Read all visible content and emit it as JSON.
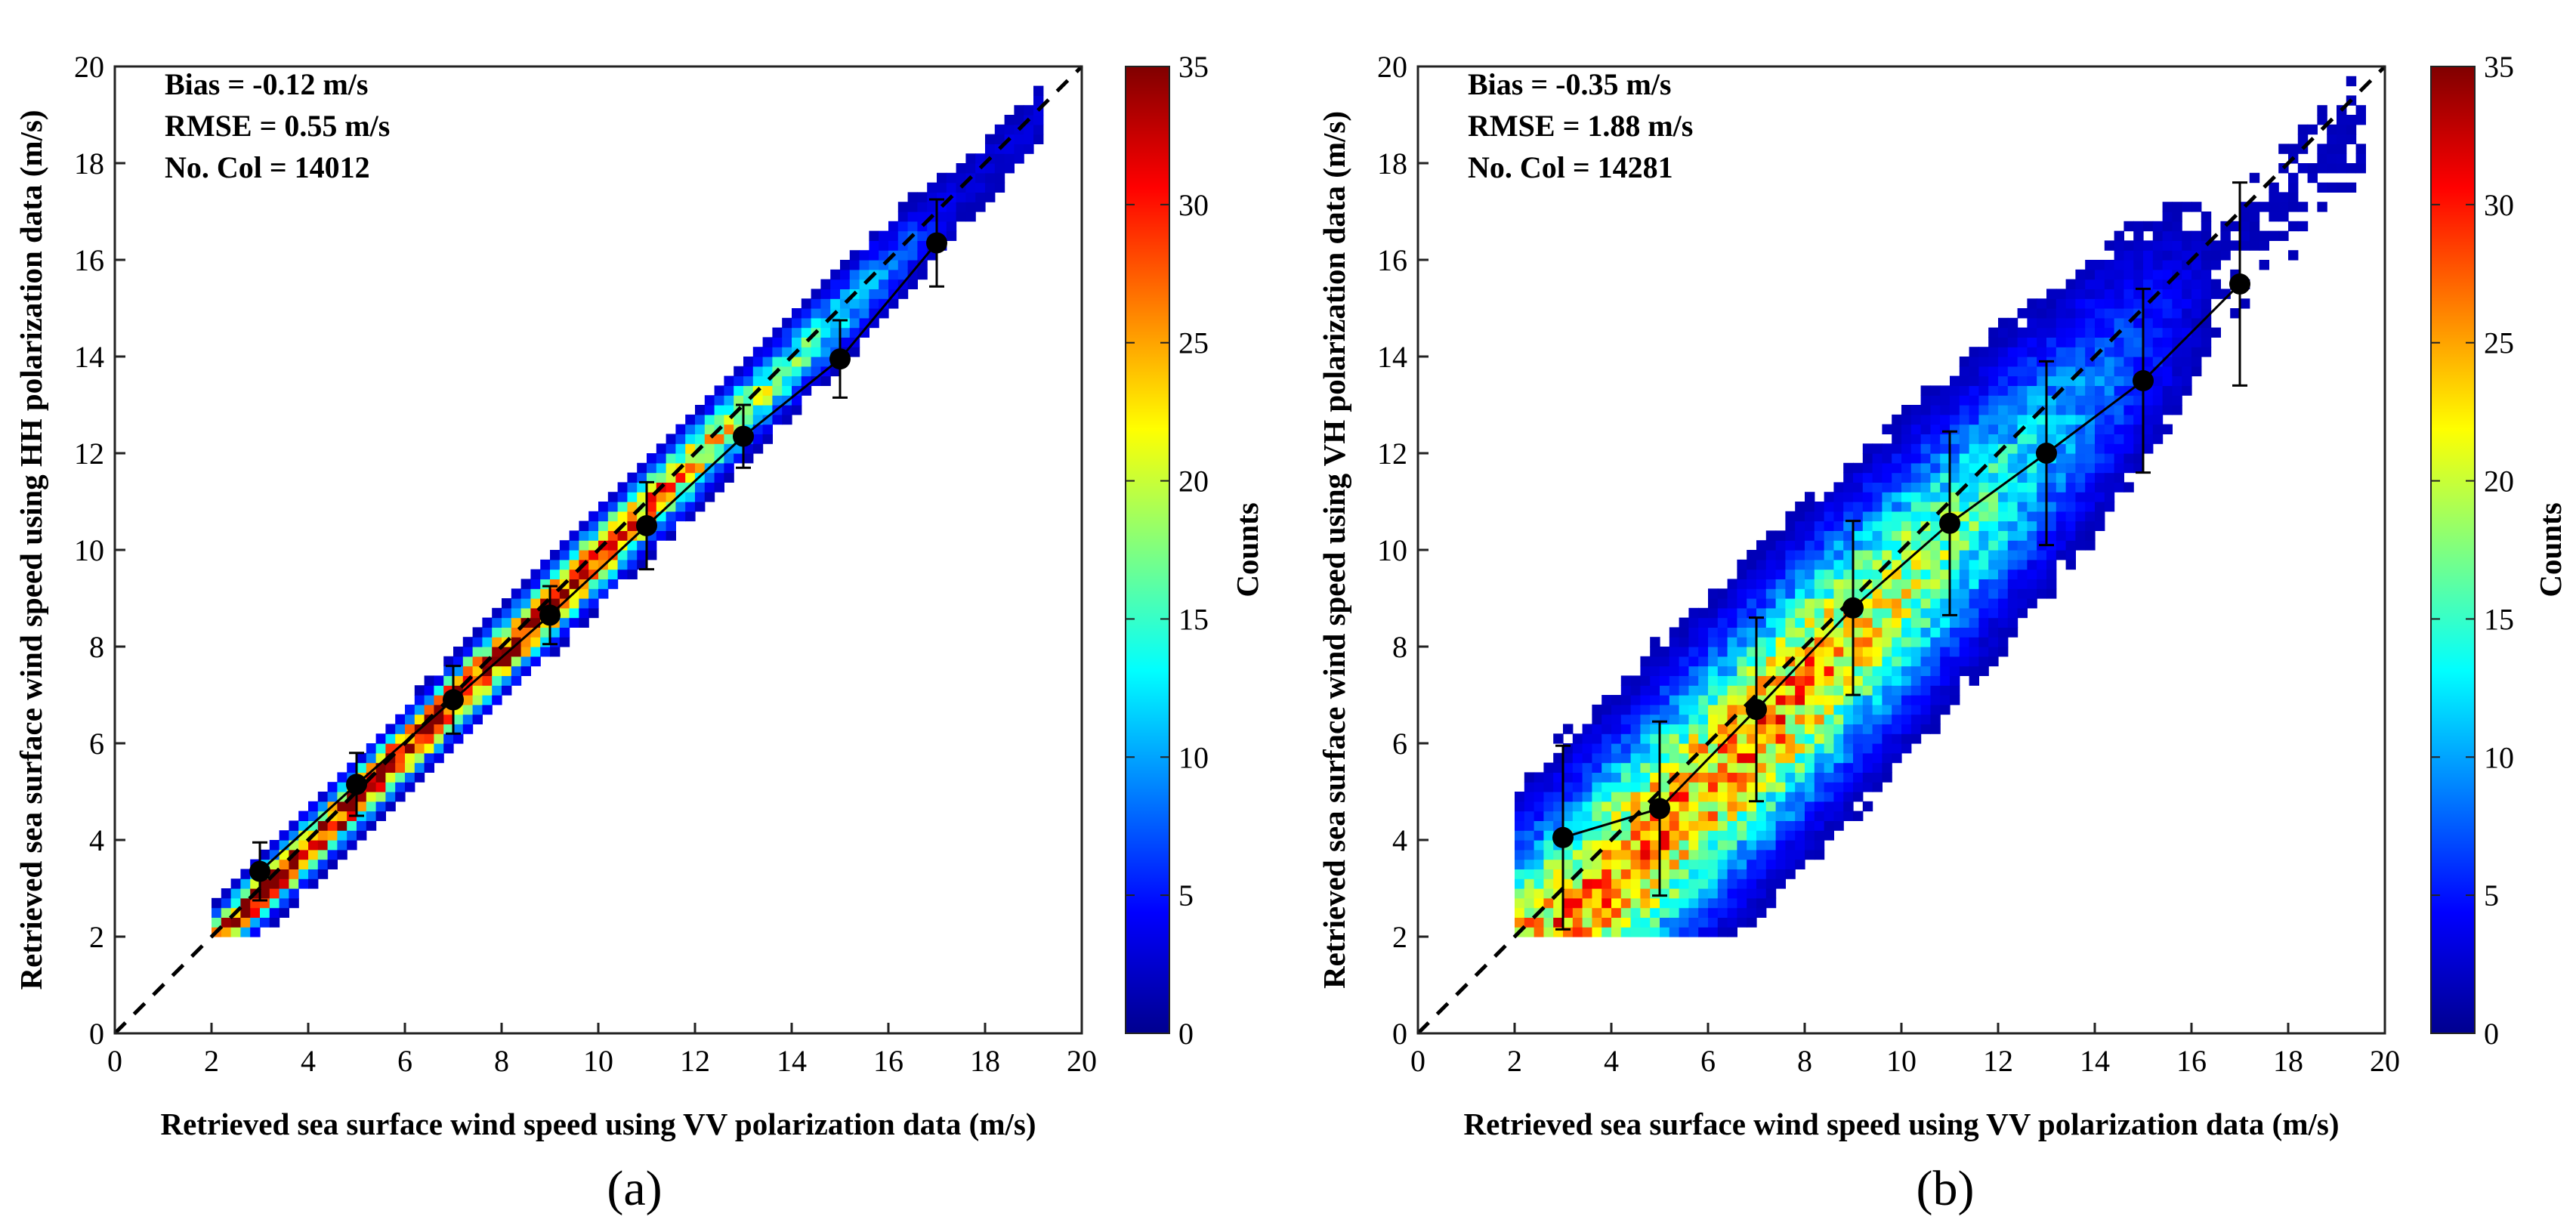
{
  "chart_data": [
    {
      "type": "density-scatter",
      "panel_label": "(a)",
      "xlabel": "Retrieved sea surface wind speed using VV polarization data (m/s)",
      "ylabel": "Retrieved sea surface wind speed using HH polarization data (m/s)",
      "xlim": [
        0,
        20
      ],
      "ylim": [
        0,
        20
      ],
      "xticks": [
        "0",
        "2",
        "4",
        "6",
        "8",
        "10",
        "12",
        "14",
        "16",
        "18",
        "20"
      ],
      "yticks": [
        "0",
        "2",
        "4",
        "6",
        "8",
        "10",
        "12",
        "14",
        "16",
        "18",
        "20"
      ],
      "stats": [
        "Bias = -0.12 m/s",
        "RMSE = 0.55 m/s",
        "No. Col = 14012"
      ],
      "reference_line": "y = x",
      "binned_mean": {
        "x": [
          3,
          5,
          7,
          9,
          11,
          13,
          15,
          17
        ],
        "y": [
          3.35,
          5.15,
          6.9,
          8.65,
          10.5,
          12.35,
          13.95,
          16.35
        ],
        "err": [
          0.6,
          0.65,
          0.7,
          0.6,
          0.9,
          0.65,
          0.8,
          0.9
        ]
      },
      "density": {
        "min_speed": 2.0,
        "max_speed": 19.0,
        "band_width": [
          0.45,
          0.8
        ],
        "offset": -0.15,
        "peak_counts": 35
      },
      "colorbar": {
        "label": "Counts",
        "min": 0,
        "max": 35,
        "ticks": [
          "0",
          "5",
          "10",
          "15",
          "20",
          "25",
          "30",
          "35"
        ]
      }
    },
    {
      "type": "density-scatter",
      "panel_label": "(b)",
      "xlabel": "Retrieved sea surface wind speed using VV polarization data (m/s)",
      "ylabel": "Retrieved sea surface wind speed using VH polarization data (m/s)",
      "xlim": [
        0,
        20
      ],
      "ylim": [
        0,
        20
      ],
      "xticks": [
        "0",
        "2",
        "4",
        "6",
        "8",
        "10",
        "12",
        "14",
        "16",
        "18",
        "20"
      ],
      "yticks": [
        "0",
        "2",
        "4",
        "6",
        "8",
        "10",
        "12",
        "14",
        "16",
        "18",
        "20"
      ],
      "stats": [
        "Bias = -0.35 m/s",
        "RMSE = 1.88 m/s",
        "No. Col = 14281"
      ],
      "reference_line": "y = x",
      "binned_mean": {
        "x": [
          3,
          5,
          7,
          9,
          11,
          13,
          15,
          17
        ],
        "y": [
          4.05,
          4.65,
          6.7,
          8.8,
          10.55,
          12.0,
          13.5,
          15.5
        ],
        "err": [
          1.9,
          1.8,
          1.9,
          1.8,
          1.9,
          1.9,
          1.9,
          2.1
        ]
      },
      "density": {
        "min_speed": 2.0,
        "max_speed": 19.5,
        "band_width": [
          2.2,
          2.0
        ],
        "offset": -0.8,
        "peak_counts": 28
      },
      "colorbar": {
        "label": "Counts",
        "min": 0,
        "max": 35,
        "ticks": [
          "0",
          "5",
          "10",
          "15",
          "20",
          "25",
          "30",
          "35"
        ]
      }
    }
  ]
}
